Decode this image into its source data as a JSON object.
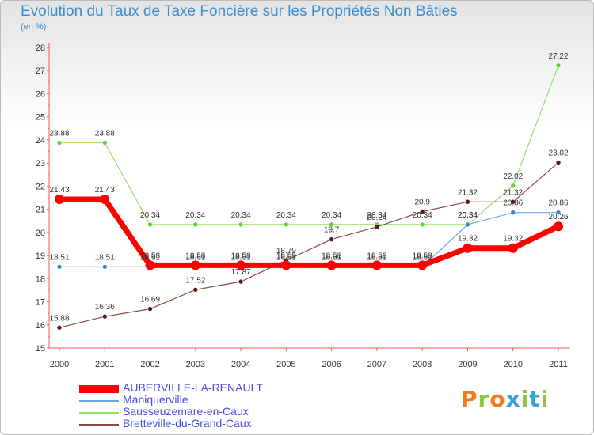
{
  "title": "Evolution du Taux de Taxe Foncière sur les Propriétés Non Bâties",
  "unit": "(en %)",
  "logo": "Proxiti",
  "chart_data": {
    "type": "line",
    "title": "Evolution du Taux de Taxe Foncière sur les Propriétés Non Bâties",
    "ylabel": "(en %)",
    "xlabel": "",
    "ylim": [
      15,
      28
    ],
    "yticks": [
      15,
      16,
      17,
      18,
      19,
      20,
      21,
      22,
      23,
      24,
      25,
      26,
      27,
      28
    ],
    "categories": [
      "2000",
      "2001",
      "2002",
      "2003",
      "2004",
      "2005",
      "2006",
      "2007",
      "2008",
      "2009",
      "2010",
      "2011"
    ],
    "grid": false,
    "legend_position": "bottom-left",
    "series": [
      {
        "name": "Sausseuzemare-en-Caux",
        "color": "#99dd66",
        "marker": "#66cc33",
        "values": [
          23.88,
          23.88,
          20.34,
          20.34,
          20.34,
          20.34,
          20.34,
          20.34,
          20.34,
          20.34,
          22.02,
          27.22
        ],
        "labels": [
          "23.88",
          "23.88",
          "20.34",
          "20.34",
          "20.34",
          "20.34",
          "20.34",
          "20.34",
          "20.34",
          "20.34",
          "22.02",
          "27.22"
        ]
      },
      {
        "name": "Bretteville-du-Grand-Caux",
        "color": "#8b4a4a",
        "marker": "#5a1a1a",
        "values": [
          15.88,
          16.36,
          16.69,
          17.52,
          17.87,
          18.79,
          19.7,
          20.24,
          20.9,
          21.32,
          21.32,
          23.02
        ],
        "labels": [
          "15.88",
          "16.36",
          "16.69",
          "17.52",
          "17.87",
          "18.79",
          "19.7",
          "20.24",
          "20.9",
          "21.32",
          "21.32",
          "23.02"
        ]
      },
      {
        "name": "Maniquerville",
        "color": "#6fa8dc",
        "marker": "#3d85c6",
        "values": [
          18.51,
          18.51,
          18.51,
          18.51,
          18.51,
          18.51,
          18.51,
          18.51,
          18.51,
          20.34,
          20.86,
          20.86
        ],
        "labels": [
          "18.51",
          "18.51",
          "18.51",
          "18.51",
          "18.51",
          "18.51",
          "18.51",
          "18.51",
          "18.51",
          "20.34",
          "20.86",
          "20.86"
        ]
      },
      {
        "name": "AUBERVILLE-LA-RENAULT",
        "color": "#ff0000",
        "marker": "#ff0000",
        "bold": true,
        "values": [
          21.43,
          21.43,
          18.58,
          18.58,
          18.58,
          18.58,
          18.58,
          18.58,
          18.58,
          19.32,
          19.32,
          20.26
        ],
        "labels": [
          "21.43",
          "21.43",
          "18.58",
          "18.58",
          "18.58",
          "18.58",
          "18.58",
          "18.58",
          "18.58",
          "19.32",
          "19.32",
          "20.26"
        ]
      }
    ],
    "legend": [
      "AUBERVILLE-LA-RENAULT",
      "Maniquerville",
      "Sausseuzemare-en-Caux",
      "Bretteville-du-Grand-Caux"
    ]
  }
}
